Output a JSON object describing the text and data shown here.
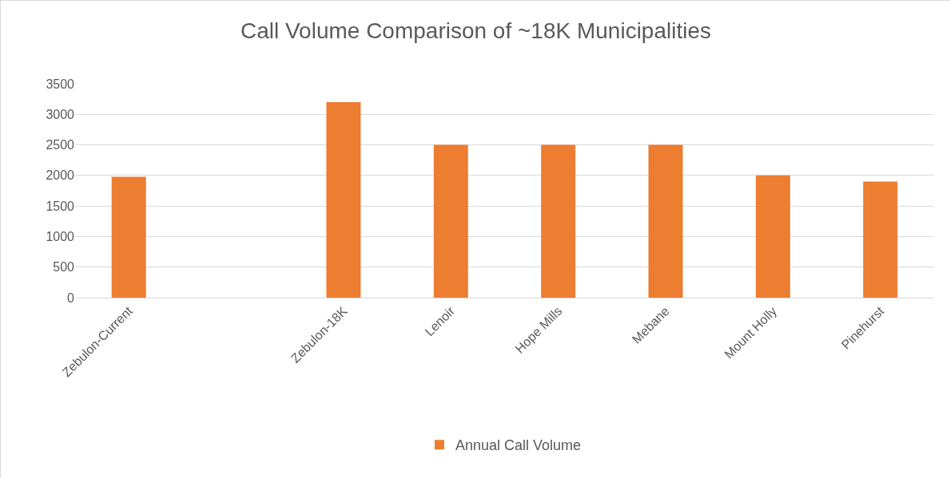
{
  "chart_data": {
    "type": "bar",
    "title": "Call Volume Comparison of ~18K Municipalities",
    "categories": [
      "Zebulon-Current",
      null,
      "Zebulon-18K",
      "Lenoir",
      "Hope Mills",
      "Mebane",
      "Mount Holly",
      "Pinehurst"
    ],
    "series": [
      {
        "name": "Annual Call Volume",
        "color": "#ed7d31",
        "values": [
          1980,
          null,
          3200,
          2500,
          2500,
          2500,
          2000,
          1900
        ]
      }
    ],
    "ylim": [
      0,
      3500
    ],
    "yticks": [
      0,
      500,
      1000,
      1500,
      2000,
      2500,
      3000,
      3500
    ],
    "grid": "y",
    "legend": "bottom"
  }
}
